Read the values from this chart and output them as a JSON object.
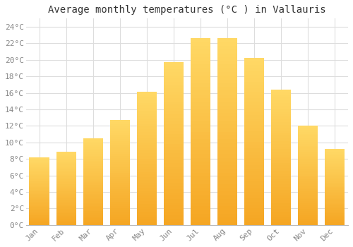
{
  "title": "Average monthly temperatures (°C ) in Vallauris",
  "months": [
    "Jan",
    "Feb",
    "Mar",
    "Apr",
    "May",
    "Jun",
    "Jul",
    "Aug",
    "Sep",
    "Oct",
    "Nov",
    "Dec"
  ],
  "values": [
    8.2,
    8.9,
    10.5,
    12.7,
    16.1,
    19.7,
    22.6,
    22.6,
    20.2,
    16.4,
    12.0,
    9.2
  ],
  "bar_color_bottom": "#F5A623",
  "bar_color_top": "#FFD966",
  "background_color": "#FFFFFF",
  "grid_color": "#DDDDDD",
  "ylim": [
    0,
    25
  ],
  "yticks": [
    0,
    2,
    4,
    6,
    8,
    10,
    12,
    14,
    16,
    18,
    20,
    22,
    24
  ],
  "title_fontsize": 10,
  "tick_fontsize": 8,
  "font_family": "monospace",
  "tick_color": "#888888",
  "bar_width": 0.75
}
